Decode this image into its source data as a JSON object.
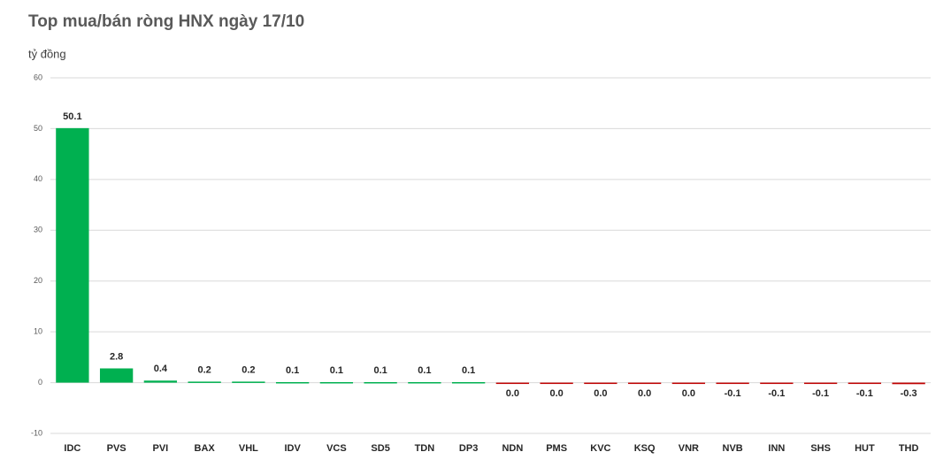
{
  "chart_data": {
    "type": "bar",
    "title": "Top mua/bán ròng HNX ngày 17/10",
    "subtitle": "tỷ đồng",
    "categories": [
      "IDC",
      "PVS",
      "PVI",
      "BAX",
      "VHL",
      "IDV",
      "VCS",
      "SD5",
      "TDN",
      "DP3",
      "NDN",
      "PMS",
      "KVC",
      "KSQ",
      "VNR",
      "NVB",
      "INN",
      "SHS",
      "HUT",
      "THD"
    ],
    "values": [
      50.1,
      2.8,
      0.4,
      0.2,
      0.2,
      0.1,
      0.1,
      0.1,
      0.1,
      0.1,
      -0.04,
      -0.04,
      -0.04,
      -0.04,
      -0.04,
      -0.1,
      -0.1,
      -0.1,
      -0.1,
      -0.3
    ],
    "value_labels": [
      "50.1",
      "2.8",
      "0.4",
      "0.2",
      "0.2",
      "0.1",
      "0.1",
      "0.1",
      "0.1",
      "0.1",
      "0.0",
      "0.0",
      "0.0",
      "0.0",
      "0.0",
      "-0.1",
      "-0.1",
      "-0.1",
      "-0.1",
      "-0.3"
    ],
    "positive_color": "#00b050",
    "negative_color": "#c00000",
    "ylim": [
      -10,
      60
    ],
    "yticks": [
      -10,
      0,
      10,
      20,
      30,
      40,
      50,
      60
    ],
    "grid": true
  }
}
